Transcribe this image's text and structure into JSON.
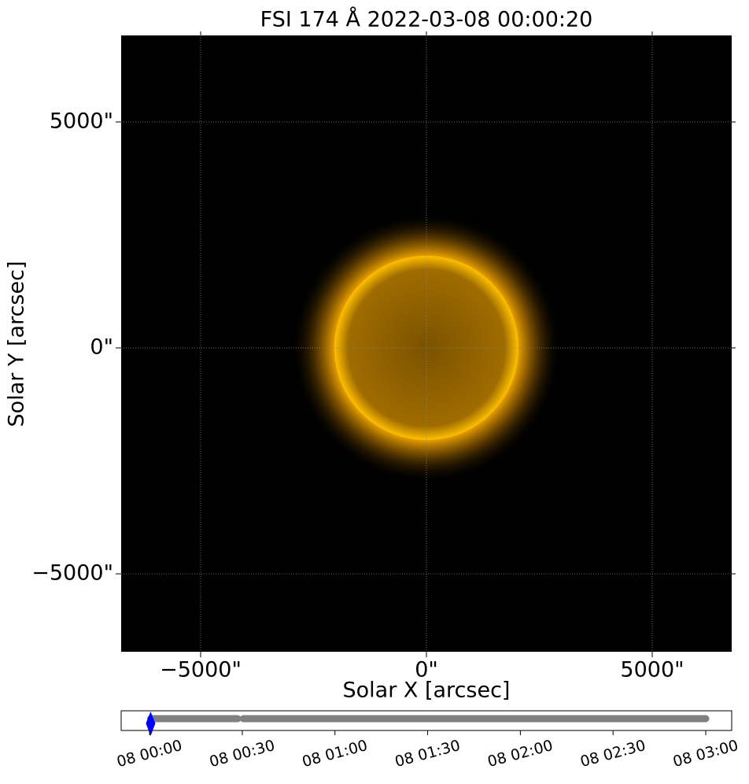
{
  "chart_data": {
    "type": "image",
    "title": "FSI 174 Å 2022-03-08 00:00:20",
    "x_label": "Solar X [arcsec]",
    "y_label": "Solar Y [arcsec]",
    "xlim": [
      -6760,
      6760
    ],
    "ylim": [
      -6725,
      6916
    ],
    "xticks": [
      {
        "value": -5000,
        "label": "−5000\""
      },
      {
        "value": 0,
        "label": "0\""
      },
      {
        "value": 5000,
        "label": "5000\""
      }
    ],
    "yticks": [
      {
        "value": -5000,
        "label": "−5000\""
      },
      {
        "value": 0,
        "label": "0\""
      },
      {
        "value": 5000,
        "label": "5000\""
      }
    ],
    "grid": true,
    "timeline": {
      "xlim": [
        "2022-03-07T23:50:48",
        "2022-03-08T03:08:24"
      ],
      "xticks": [
        {
          "value": "2022-03-08T00:00:00",
          "label": "08 00:00"
        },
        {
          "value": "2022-03-08T00:30:00",
          "label": "08 00:30"
        },
        {
          "value": "2022-03-08T01:00:00",
          "label": "08 01:00"
        },
        {
          "value": "2022-03-08T01:30:00",
          "label": "08 01:30"
        },
        {
          "value": "2022-03-08T02:00:00",
          "label": "08 02:00"
        },
        {
          "value": "2022-03-08T02:30:00",
          "label": "08 02:30"
        },
        {
          "value": "2022-03-08T03:00:00",
          "label": "08 03:00"
        }
      ],
      "segments": [
        [
          "2022-03-08T00:00:20",
          "2022-03-08T00:28:30"
        ],
        [
          "2022-03-08T00:30:20",
          "2022-03-08T03:00:00"
        ]
      ],
      "segment_color": "#808080",
      "current": "2022-03-08T00:00:20",
      "current_color": "#0000ff"
    }
  }
}
